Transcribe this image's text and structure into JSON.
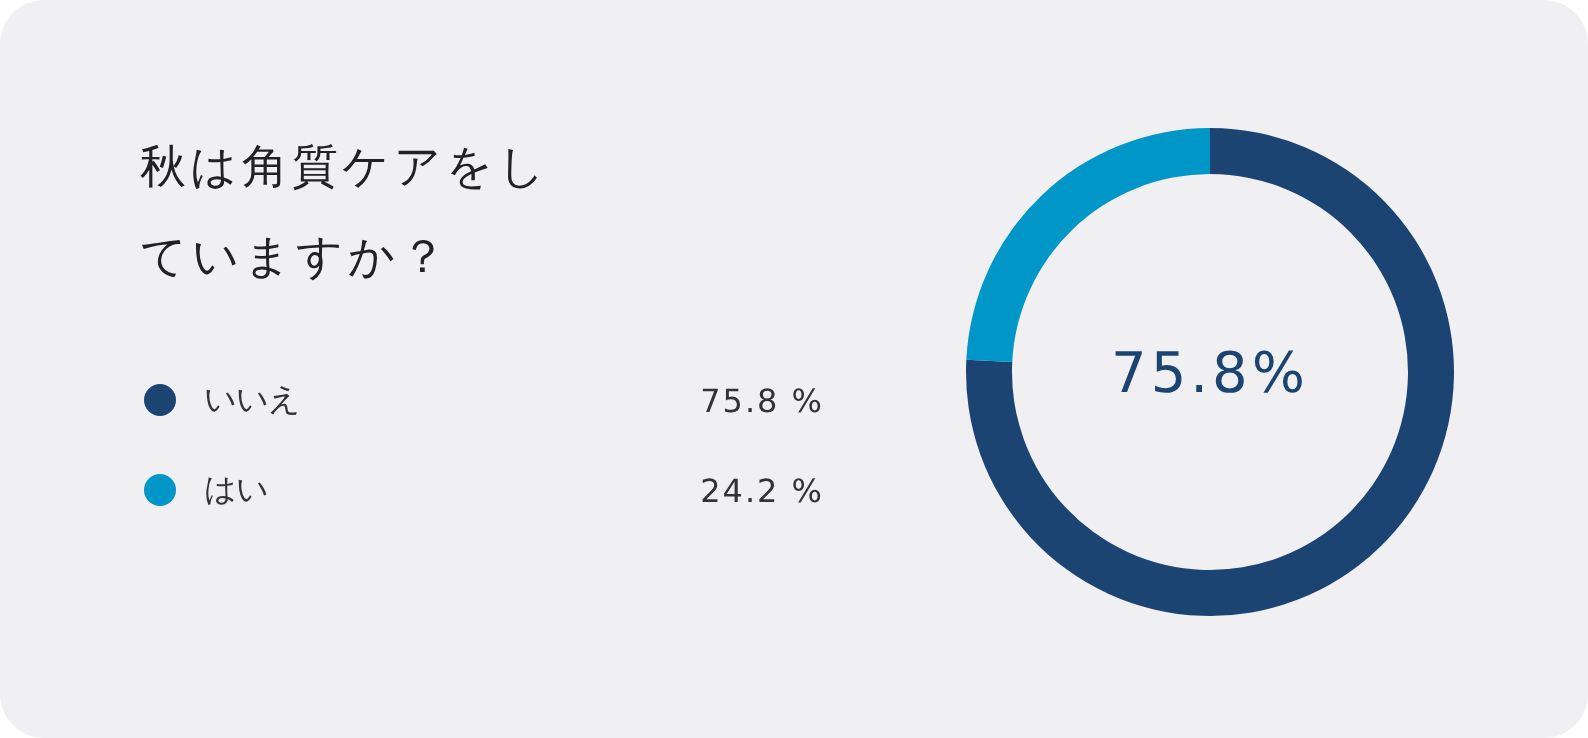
{
  "chart_data": {
    "type": "donut",
    "title": "秋は角質ケアをしていますか？",
    "categories": [
      "いいえ",
      "はい"
    ],
    "values": [
      75.8,
      24.2
    ],
    "colors": [
      "#1b4472",
      "#0096c8"
    ],
    "value_labels": [
      "75.8 %",
      "24.2 %"
    ],
    "annotations": [
      "75.8%"
    ],
    "legend": "left"
  }
}
